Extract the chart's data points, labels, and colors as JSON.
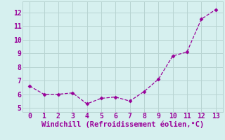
{
  "x": [
    0,
    1,
    2,
    3,
    4,
    5,
    6,
    7,
    8,
    9,
    10,
    11,
    12,
    13
  ],
  "y": [
    6.6,
    6.0,
    6.0,
    6.1,
    5.3,
    5.7,
    5.8,
    5.5,
    6.2,
    7.1,
    8.8,
    9.1,
    11.5,
    12.2
  ],
  "line_color": "#990099",
  "marker": "D",
  "marker_size": 2.5,
  "bg_color": "#d6f0ef",
  "grid_color": "#b8d4d2",
  "xlabel": "Windchill (Refroidissement éolien,°C)",
  "xlabel_color": "#990099",
  "xlabel_fontsize": 7.5,
  "tick_color": "#990099",
  "tick_fontsize": 7,
  "ylim": [
    4.7,
    12.8
  ],
  "xlim": [
    -0.5,
    13.5
  ],
  "yticks": [
    5,
    6,
    7,
    8,
    9,
    10,
    11,
    12
  ],
  "xticks": [
    0,
    1,
    2,
    3,
    4,
    5,
    6,
    7,
    8,
    9,
    10,
    11,
    12,
    13
  ]
}
